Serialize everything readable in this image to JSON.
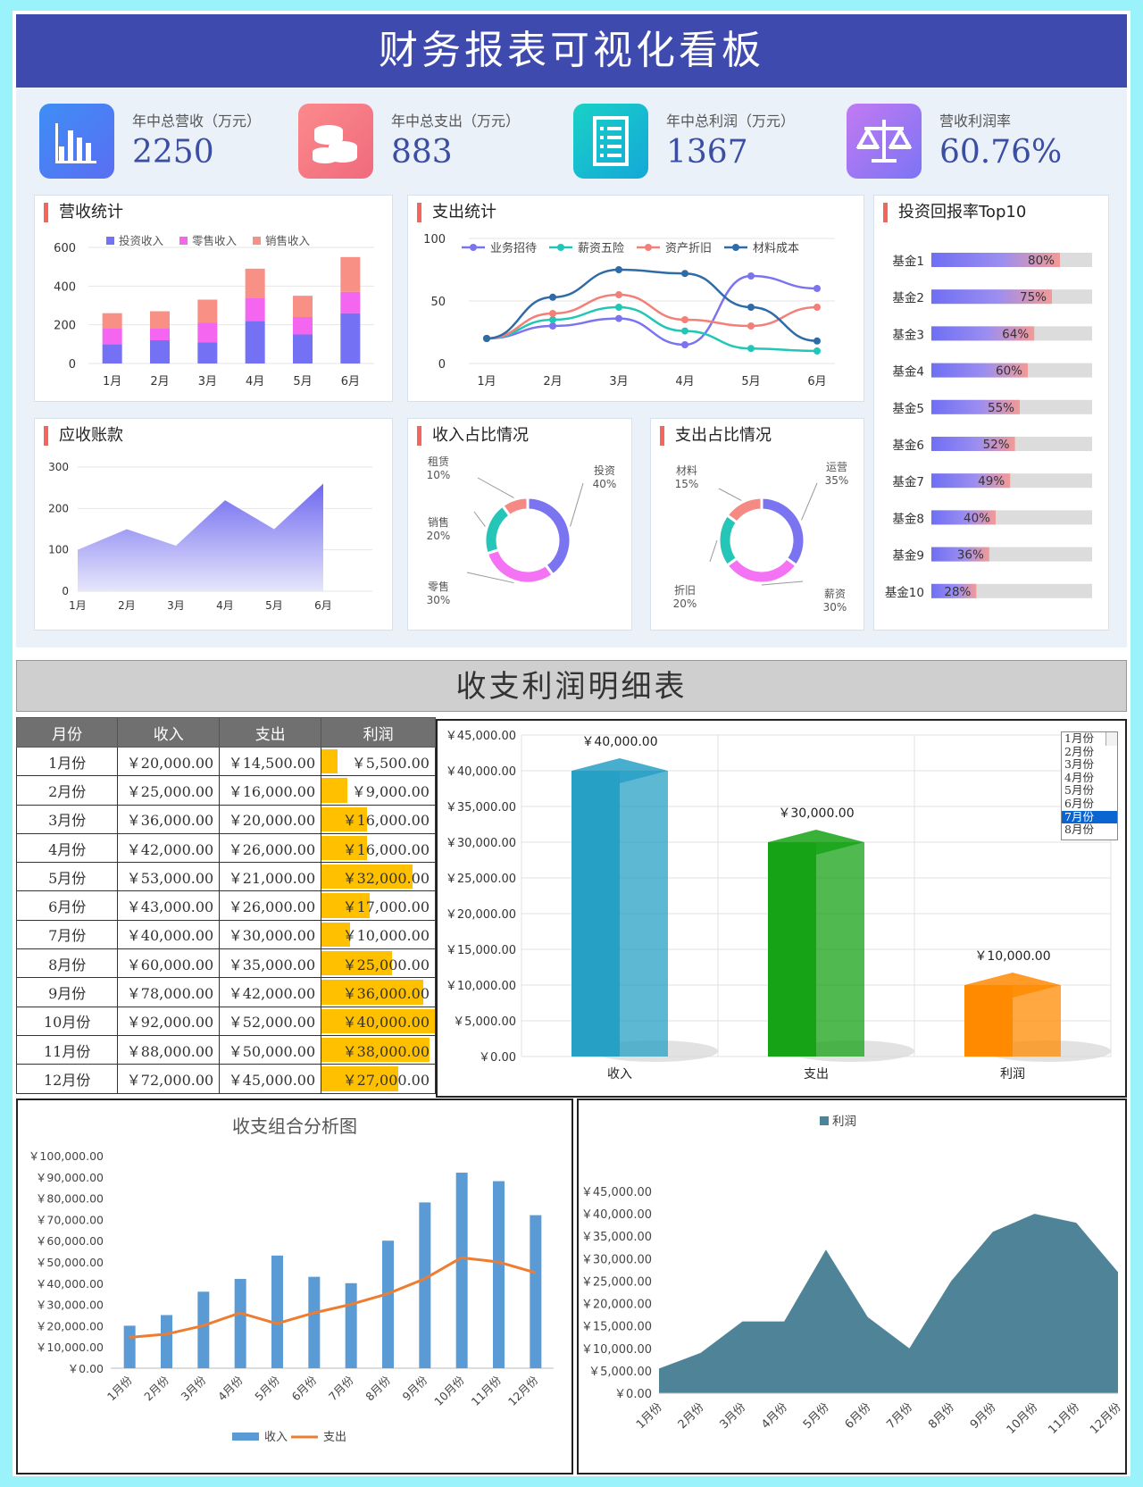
{
  "header": {
    "title": "财务报表可视化看板"
  },
  "kpis": [
    {
      "label": "年中总营收（万元）",
      "value": "2250",
      "icon": "bar-chart-icon",
      "color": "#4f7af5"
    },
    {
      "label": "年中总支出（万元）",
      "value": "883",
      "icon": "coins-icon",
      "color": "#f57f86"
    },
    {
      "label": "年中总利润（万元）",
      "value": "1367",
      "icon": "document-list-icon",
      "color": "#18c7c2"
    },
    {
      "label": "营收利润率",
      "value": "60.76%",
      "icon": "balance-scale-icon",
      "color": "#a27af5"
    }
  ],
  "revenue_panel": {
    "title": "营收统计"
  },
  "expense_panel": {
    "title": "支出统计"
  },
  "roi_panel": {
    "title": "投资回报率Top10"
  },
  "receivable_panel": {
    "title": "应收账款"
  },
  "income_share_panel": {
    "title": "收入占比情况"
  },
  "expense_share_panel": {
    "title": "支出占比情况"
  },
  "detail_section": {
    "title": "收支利润明细表"
  },
  "table": {
    "headers": [
      "月份",
      "收入",
      "支出",
      "利润"
    ],
    "rows": [
      [
        "1月份",
        "￥20,000.00",
        "￥14,500.00",
        "￥5,500.00"
      ],
      [
        "2月份",
        "￥25,000.00",
        "￥16,000.00",
        "￥9,000.00"
      ],
      [
        "3月份",
        "￥36,000.00",
        "￥20,000.00",
        "￥16,000.00"
      ],
      [
        "4月份",
        "￥42,000.00",
        "￥26,000.00",
        "￥16,000.00"
      ],
      [
        "5月份",
        "￥53,000.00",
        "￥21,000.00",
        "￥32,000.00"
      ],
      [
        "6月份",
        "￥43,000.00",
        "￥26,000.00",
        "￥17,000.00"
      ],
      [
        "7月份",
        "￥40,000.00",
        "￥30,000.00",
        "￥10,000.00"
      ],
      [
        "8月份",
        "￥60,000.00",
        "￥35,000.00",
        "￥25,000.00"
      ],
      [
        "9月份",
        "￥78,000.00",
        "￥42,000.00",
        "￥36,000.00"
      ],
      [
        "10月份",
        "￥92,000.00",
        "￥52,000.00",
        "￥40,000.00"
      ],
      [
        "11月份",
        "￥88,000.00",
        "￥50,000.00",
        "￥38,000.00"
      ],
      [
        "12月份",
        "￥72,000.00",
        "￥45,000.00",
        "￥27,000.00"
      ]
    ],
    "profit_values": [
      5500,
      9000,
      16000,
      16000,
      32000,
      17000,
      10000,
      25000,
      36000,
      40000,
      38000,
      27000
    ],
    "databar_color": "#ffc000"
  },
  "month_selector": {
    "options": [
      "1月份",
      "2月份",
      "3月份",
      "4月份",
      "5月份",
      "6月份",
      "7月份",
      "8月份"
    ],
    "selected": "7月份"
  },
  "combo_title": "收支组合分析图",
  "chart_data": [
    {
      "id": "revenue",
      "type": "bar",
      "stacked": true,
      "categories": [
        "1月",
        "2月",
        "3月",
        "4月",
        "5月",
        "6月"
      ],
      "series": [
        {
          "name": "投资收入",
          "values": [
            100,
            120,
            110,
            220,
            150,
            260
          ],
          "color": "#7471f5"
        },
        {
          "name": "零售收入",
          "values": [
            80,
            60,
            100,
            120,
            90,
            110
          ],
          "color": "#f466f0"
        },
        {
          "name": "销售收入",
          "values": [
            80,
            90,
            120,
            150,
            110,
            180
          ],
          "color": "#f99086"
        }
      ],
      "ylim": [
        0,
        600
      ],
      "yticks": [
        0,
        200,
        400,
        600
      ],
      "legend": "top"
    },
    {
      "id": "expense",
      "type": "line",
      "smooth": true,
      "categories": [
        "1月",
        "2月",
        "3月",
        "4月",
        "5月",
        "6月"
      ],
      "series": [
        {
          "name": "业务招待",
          "values": [
            20,
            30,
            36,
            15,
            70,
            60
          ],
          "color": "#7b74ee"
        },
        {
          "name": "薪资五险",
          "values": [
            20,
            35,
            45,
            26,
            12,
            10
          ],
          "color": "#20c7b8"
        },
        {
          "name": "资产折旧",
          "values": [
            20,
            40,
            55,
            35,
            30,
            45
          ],
          "color": "#f37f79"
        },
        {
          "name": "材料成本",
          "values": [
            20,
            53,
            75,
            72,
            45,
            18
          ],
          "color": "#2f6ba6"
        }
      ],
      "ylim": [
        0,
        100
      ],
      "yticks": [
        0,
        50,
        100
      ],
      "legend": "top"
    },
    {
      "id": "roi",
      "type": "bar",
      "orientation": "horizontal",
      "categories": [
        "基金1",
        "基金2",
        "基金3",
        "基金4",
        "基金5",
        "基金6",
        "基金7",
        "基金8",
        "基金9",
        "基金10"
      ],
      "values": [
        80,
        75,
        64,
        60,
        55,
        52,
        49,
        40,
        36,
        28
      ],
      "labels": [
        "80%",
        "75%",
        "64%",
        "60%",
        "55%",
        "52%",
        "49%",
        "40%",
        "36%",
        "28%"
      ],
      "xlim": [
        0,
        100
      ]
    },
    {
      "id": "receivable",
      "type": "area",
      "categories": [
        "1月",
        "2月",
        "3月",
        "4月",
        "5月",
        "6月"
      ],
      "values": [
        100,
        150,
        110,
        220,
        150,
        260
      ],
      "ylim": [
        0,
        300
      ],
      "yticks": [
        0,
        100,
        200,
        300
      ],
      "color": "#6e68f0"
    },
    {
      "id": "income_share",
      "type": "pie",
      "donut": true,
      "slices": [
        {
          "name": "投资",
          "value": 40,
          "label": "40%",
          "color": "#7b74f0"
        },
        {
          "name": "零售",
          "value": 30,
          "label": "30%",
          "color": "#f472f4"
        },
        {
          "name": "销售",
          "value": 20,
          "label": "20%",
          "color": "#25c6b8"
        },
        {
          "name": "租赁",
          "value": 10,
          "label": "10%",
          "color": "#f58a84"
        }
      ]
    },
    {
      "id": "expense_share",
      "type": "pie",
      "donut": true,
      "slices": [
        {
          "name": "运营",
          "value": 35,
          "label": "35%",
          "color": "#7b74f0"
        },
        {
          "name": "薪资",
          "value": 30,
          "label": "30%",
          "color": "#f472f4"
        },
        {
          "name": "折旧",
          "value": 20,
          "label": "20%",
          "color": "#25c6b8"
        },
        {
          "name": "材料",
          "value": 15,
          "label": "15%",
          "color": "#f58a84"
        }
      ]
    },
    {
      "id": "month_3d",
      "type": "bar",
      "categories": [
        "收入",
        "支出",
        "利润"
      ],
      "values": [
        40000,
        30000,
        10000
      ],
      "labels": [
        "￥40,000.00",
        "￥30,000.00",
        "￥10,000.00"
      ],
      "colors": [
        "#27a0c6",
        "#16a316",
        "#ff8a00"
      ],
      "ylim": [
        0,
        45000
      ],
      "ytick_labels": [
        "￥0.00",
        "￥5,000.00",
        "￥10,000.00",
        "￥15,000.00",
        "￥20,000.00",
        "￥25,000.00",
        "￥30,000.00",
        "￥35,000.00",
        "￥40,000.00",
        "￥45,000.00"
      ]
    },
    {
      "id": "combo",
      "type": "bar",
      "title": "收支组合分析图",
      "categories": [
        "1月份",
        "2月份",
        "3月份",
        "4月份",
        "5月份",
        "6月份",
        "7月份",
        "8月份",
        "9月份",
        "10月份",
        "11月份",
        "12月份"
      ],
      "series": [
        {
          "name": "收入",
          "type": "bar",
          "values": [
            20000,
            25000,
            36000,
            42000,
            53000,
            43000,
            40000,
            60000,
            78000,
            92000,
            88000,
            72000
          ],
          "color": "#5b9bd5"
        },
        {
          "name": "支出",
          "type": "line",
          "values": [
            14500,
            16000,
            20000,
            26000,
            21000,
            26000,
            30000,
            35000,
            42000,
            52000,
            50000,
            45000
          ],
          "color": "#ed7d31"
        }
      ],
      "ylim": [
        0,
        100000
      ],
      "ytick_labels": [
        "￥0.00",
        "￥10,000.00",
        "￥20,000.00",
        "￥30,000.00",
        "￥40,000.00",
        "￥50,000.00",
        "￥60,000.00",
        "￥70,000.00",
        "￥80,000.00",
        "￥90,000.00",
        "￥100,000.00"
      ],
      "legend": "bottom"
    },
    {
      "id": "profit_area",
      "type": "area",
      "categories": [
        "1月份",
        "2月份",
        "3月份",
        "4月份",
        "5月份",
        "6月份",
        "7月份",
        "8月份",
        "9月份",
        "10月份",
        "11月份",
        "12月份"
      ],
      "series": [
        {
          "name": "利润",
          "values": [
            5500,
            9000,
            16000,
            16000,
            32000,
            17000,
            10000,
            25000,
            36000,
            40000,
            38000,
            27000
          ],
          "color": "#4f8498"
        }
      ],
      "ylim": [
        0,
        45000
      ],
      "ytick_labels": [
        "￥0.00",
        "￥5,000.00",
        "￥10,000.00",
        "￥15,000.00",
        "￥20,000.00",
        "￥25,000.00",
        "￥30,000.00",
        "￥35,000.00",
        "￥40,000.00",
        "￥45,000.00"
      ],
      "legend": "top"
    }
  ]
}
